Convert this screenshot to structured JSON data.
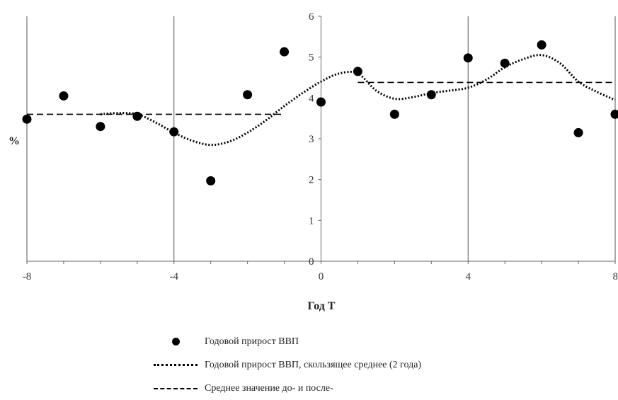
{
  "chart_data": {
    "type": "scatter",
    "ylabel": "%",
    "xlabel": "Год Т",
    "xlim": [
      -8,
      8
    ],
    "ylim": [
      0,
      6
    ],
    "xticks": [
      "-8",
      "-4",
      "0",
      "4",
      "8"
    ],
    "yticks": [
      "0",
      "1",
      "2",
      "3",
      "4",
      "5",
      "6"
    ],
    "grid": "vertical lines at x = -8, -4, 0, 4, 8",
    "legend_position": "bottom",
    "series": [
      {
        "name": "Годовой прирост ВВП",
        "style": "markers",
        "x": [
          -8,
          -7,
          -6,
          -5,
          -4,
          -3,
          -2,
          -1,
          0,
          1,
          2,
          3,
          4,
          5,
          6,
          7,
          8
        ],
        "y": [
          3.48,
          4.05,
          3.3,
          3.55,
          3.17,
          1.97,
          4.08,
          5.13,
          3.9,
          4.65,
          3.6,
          4.08,
          4.98,
          4.85,
          5.3,
          3.15,
          3.6
        ]
      },
      {
        "name": "Годовой прирост ВВП, скользящее среднее (2 года)",
        "style": "dotted",
        "x": [
          -6,
          -5.5,
          -5,
          -4.5,
          -4,
          -3.5,
          -3,
          -2.5,
          -2,
          -1.5,
          -1,
          -0.5,
          0,
          0.5,
          1,
          1.5,
          2,
          2.5,
          3,
          3.5,
          4,
          4.5,
          5,
          5.5,
          6,
          6.5,
          7,
          7.5,
          8
        ],
        "y": [
          3.6,
          3.63,
          3.6,
          3.4,
          3.15,
          2.95,
          2.85,
          2.93,
          3.15,
          3.45,
          3.8,
          4.12,
          4.4,
          4.6,
          4.6,
          4.18,
          3.98,
          4.02,
          4.12,
          4.18,
          4.25,
          4.45,
          4.75,
          4.95,
          5.05,
          4.85,
          4.4,
          4.15,
          3.95
        ]
      },
      {
        "name": "Среднее значение до- и после-",
        "style": "dashed",
        "segments": [
          {
            "x": [
              -8,
              -1
            ],
            "y": [
              3.6,
              3.6
            ]
          },
          {
            "x": [
              1,
              8
            ],
            "y": [
              4.38,
              4.38
            ]
          }
        ]
      }
    ],
    "colors": {
      "ink": "#000000",
      "axis": "#666666"
    }
  }
}
